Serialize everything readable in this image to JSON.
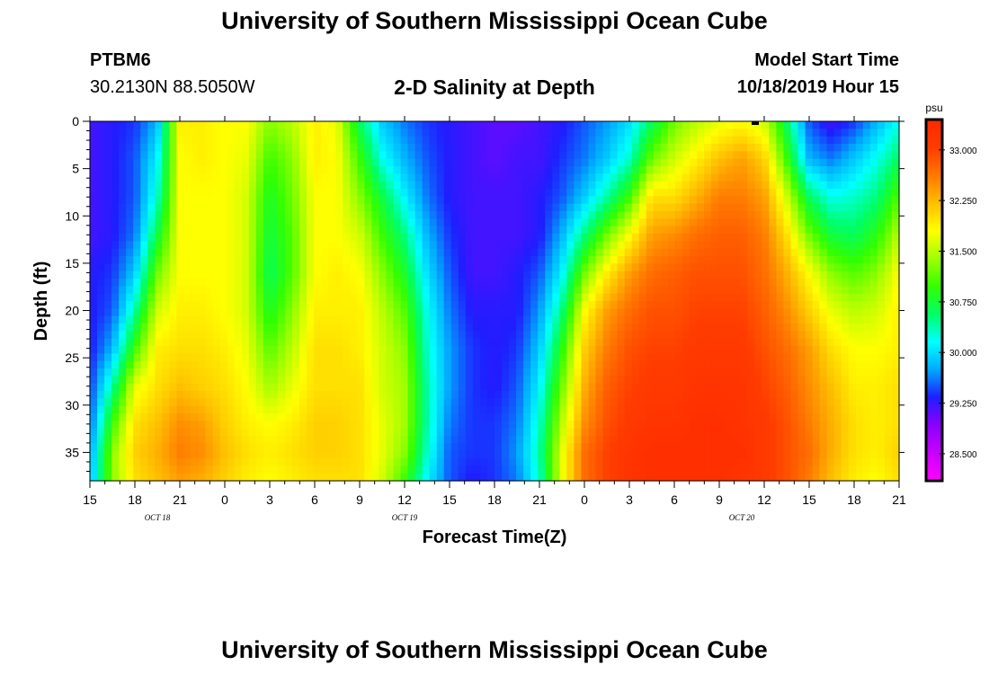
{
  "header": {
    "title": "University of Southern Mississippi Ocean Cube",
    "station_id": "PTBM6",
    "station_coords": "30.2130N 88.5050W",
    "plot_title": "2-D Salinity at Depth",
    "start_label": "Model Start Time",
    "start_value": "10/18/2019 Hour 15"
  },
  "footer": {
    "title": "University of Southern Mississippi Ocean Cube"
  },
  "chart_data": {
    "type": "heatmap",
    "title": "2-D Salinity at Depth",
    "xlabel": "Forecast Time(Z)",
    "ylabel": "Depth (ft)",
    "x_tick_labels": [
      "15",
      "18",
      "21",
      "0",
      "3",
      "6",
      "9",
      "12",
      "15",
      "18",
      "21",
      "0",
      "3",
      "6",
      "9",
      "12",
      "15",
      "18",
      "21"
    ],
    "date_labels": [
      {
        "label": "OCT 18",
        "tick_index": 1.5
      },
      {
        "label": "OCT 19",
        "tick_index": 7
      },
      {
        "label": "OCT 20",
        "tick_index": 14.5
      }
    ],
    "y_ticks": [
      0,
      5,
      10,
      15,
      20,
      25,
      30,
      35
    ],
    "ylim": [
      0,
      38
    ],
    "x_steps": 18,
    "colorbar": {
      "unit": "psu",
      "tick_labels": [
        "33.000",
        "32.250",
        "31.500",
        "30.750",
        "30.000",
        "29.250",
        "28.500"
      ],
      "ticks": [
        33.0,
        32.25,
        31.5,
        30.75,
        30.0,
        29.25,
        28.5
      ],
      "range": [
        28.1,
        33.45
      ],
      "colors": [
        "#ff00ff",
        "#c800ff",
        "#8c00ff",
        "#1e1eff",
        "#00aaff",
        "#00ffff",
        "#00ff64",
        "#32ff00",
        "#a0ff00",
        "#ffff00",
        "#ffbe00",
        "#ff7800",
        "#ff3c00",
        "#ff2800"
      ]
    },
    "depths": [
      0,
      4,
      8,
      12,
      16,
      20,
      24,
      28,
      32,
      35,
      38
    ],
    "time_index": [
      0,
      0.5,
      1,
      1.5,
      2,
      2.5,
      3,
      3.5,
      4,
      4.5,
      5,
      5.5,
      6,
      6.5,
      7,
      7.5,
      8,
      8.5,
      9,
      9.5,
      10,
      10.5,
      11,
      11.5,
      12,
      12.5,
      13,
      13.5,
      14,
      14.5,
      15,
      15.5,
      16,
      16.5,
      17,
      17.5,
      18
    ],
    "salinity_profiles": [
      [
        29.2,
        29.2,
        29.2,
        29.2,
        29.3,
        29.3,
        29.3,
        29.4,
        29.5,
        29.7,
        29.8
      ],
      [
        29.3,
        29.3,
        29.3,
        29.3,
        29.4,
        29.5,
        29.8,
        30.4,
        31.0,
        31.3,
        31.3
      ],
      [
        29.4,
        29.5,
        29.5,
        29.6,
        29.9,
        30.4,
        31.0,
        31.7,
        32.0,
        32.1,
        32.0
      ],
      [
        29.8,
        30.1,
        30.3,
        30.7,
        31.2,
        31.6,
        31.9,
        32.0,
        32.2,
        32.3,
        32.2
      ],
      [
        31.9,
        31.8,
        31.8,
        31.8,
        31.8,
        31.9,
        32.0,
        32.2,
        32.5,
        32.6,
        32.4
      ],
      [
        31.9,
        31.9,
        31.8,
        31.8,
        31.8,
        31.9,
        32.0,
        32.1,
        32.4,
        32.5,
        32.3
      ],
      [
        31.8,
        31.8,
        31.8,
        31.8,
        31.8,
        31.8,
        31.9,
        32.0,
        32.1,
        32.2,
        32.1
      ],
      [
        31.8,
        31.7,
        31.6,
        31.6,
        31.6,
        31.6,
        31.7,
        31.8,
        31.9,
        32.0,
        31.9
      ],
      [
        31.3,
        31.0,
        30.8,
        30.7,
        30.6,
        30.8,
        31.1,
        31.4,
        31.8,
        31.9,
        31.8
      ],
      [
        31.5,
        31.3,
        31.2,
        31.1,
        31.1,
        31.3,
        31.5,
        31.7,
        31.9,
        32.0,
        31.9
      ],
      [
        31.9,
        31.9,
        31.8,
        31.8,
        31.8,
        31.9,
        32.0,
        32.0,
        32.1,
        32.1,
        32.0
      ],
      [
        31.7,
        31.8,
        31.8,
        31.8,
        31.9,
        31.9,
        32.0,
        32.0,
        32.1,
        32.1,
        32.0
      ],
      [
        30.6,
        31.0,
        31.3,
        31.6,
        31.8,
        31.9,
        31.9,
        32.0,
        32.0,
        32.0,
        32.0
      ],
      [
        29.9,
        30.2,
        30.7,
        31.0,
        31.3,
        31.5,
        31.6,
        31.6,
        31.7,
        31.7,
        31.6
      ],
      [
        29.6,
        29.8,
        30.1,
        30.5,
        30.8,
        31.1,
        31.3,
        31.4,
        31.4,
        31.3,
        31.0
      ],
      [
        29.4,
        29.5,
        29.6,
        29.8,
        30.0,
        30.2,
        30.3,
        30.4,
        30.4,
        30.3,
        30.1
      ],
      [
        29.3,
        29.3,
        29.3,
        29.4,
        29.5,
        29.6,
        29.7,
        29.7,
        29.6,
        29.5,
        29.5
      ],
      [
        29.2,
        29.2,
        29.2,
        29.2,
        29.2,
        29.3,
        29.4,
        29.4,
        29.4,
        29.4,
        29.3
      ],
      [
        29.1,
        29.1,
        29.2,
        29.2,
        29.2,
        29.3,
        29.3,
        29.3,
        29.4,
        29.4,
        29.4
      ],
      [
        29.1,
        29.2,
        29.2,
        29.2,
        29.3,
        29.3,
        29.4,
        29.5,
        29.6,
        29.7,
        29.6
      ],
      [
        29.2,
        29.2,
        29.3,
        29.3,
        29.5,
        29.7,
        29.9,
        30.1,
        30.3,
        30.4,
        30.3
      ],
      [
        29.3,
        29.4,
        29.5,
        29.8,
        30.1,
        30.5,
        30.9,
        31.2,
        31.5,
        31.7,
        31.7
      ],
      [
        29.5,
        29.6,
        29.9,
        30.5,
        31.2,
        31.8,
        32.1,
        32.3,
        32.5,
        32.7,
        32.7
      ],
      [
        29.7,
        29.9,
        30.4,
        31.2,
        31.9,
        32.4,
        32.6,
        32.8,
        32.9,
        33.0,
        33.0
      ],
      [
        30.0,
        30.3,
        31.0,
        31.8,
        32.4,
        32.7,
        32.9,
        33.0,
        33.1,
        33.2,
        33.2
      ],
      [
        30.6,
        31.2,
        32.0,
        32.4,
        32.7,
        32.9,
        33.0,
        33.1,
        33.2,
        33.3,
        33.3
      ],
      [
        31.2,
        31.6,
        32.0,
        32.5,
        32.8,
        32.9,
        33.0,
        33.1,
        33.2,
        33.3,
        33.3
      ],
      [
        31.5,
        31.9,
        32.3,
        32.7,
        32.9,
        33.0,
        33.1,
        33.2,
        33.3,
        33.3,
        33.3
      ],
      [
        31.7,
        32.2,
        32.6,
        32.8,
        32.9,
        33.0,
        33.1,
        33.2,
        33.3,
        33.3,
        33.3
      ],
      [
        31.8,
        32.4,
        32.6,
        32.8,
        32.9,
        33.0,
        33.1,
        33.2,
        33.2,
        33.3,
        33.2
      ],
      [
        31.6,
        32.1,
        32.4,
        32.6,
        32.7,
        32.8,
        32.9,
        33.0,
        33.1,
        33.1,
        33.1
      ],
      [
        30.6,
        31.0,
        31.6,
        32.0,
        32.3,
        32.5,
        32.7,
        32.8,
        32.9,
        32.9,
        32.9
      ],
      [
        29.5,
        29.8,
        30.6,
        31.2,
        31.8,
        32.1,
        32.4,
        32.5,
        32.6,
        32.7,
        32.6
      ],
      [
        29.2,
        29.6,
        30.2,
        30.7,
        31.3,
        31.7,
        32.0,
        32.2,
        32.3,
        32.3,
        32.2
      ],
      [
        29.4,
        29.9,
        30.3,
        30.6,
        31.1,
        31.5,
        31.8,
        31.9,
        32.0,
        32.0,
        31.9
      ],
      [
        29.8,
        30.2,
        30.5,
        30.9,
        31.3,
        31.6,
        31.8,
        31.9,
        31.9,
        31.9,
        31.8
      ],
      [
        30.2,
        30.6,
        31.1,
        31.5,
        31.8,
        31.9,
        31.9,
        32.0,
        32.0,
        32.1,
        32.0
      ]
    ],
    "marker": {
      "time_index": 14.8,
      "depth": 0
    }
  }
}
